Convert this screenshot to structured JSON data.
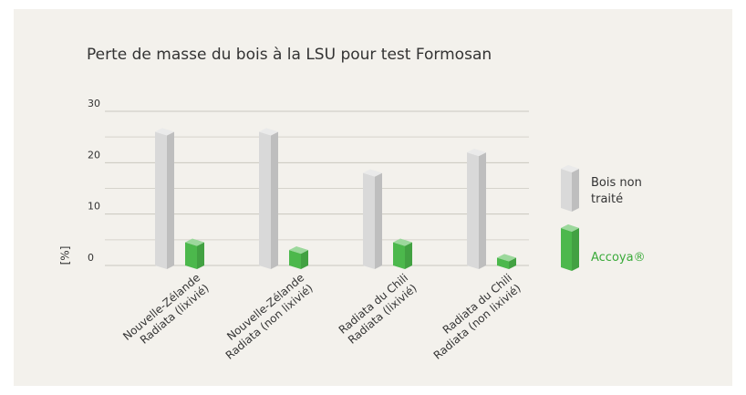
{
  "chart_data": {
    "type": "bar3d",
    "title": "Perte de masse du bois à la LSU pour test Formosan",
    "ylabel": "[%]",
    "categories": [
      [
        "Nouvelle-Zélande",
        "Radiata (lixivié)"
      ],
      [
        "Nouvelle-Zélande",
        "Radiata (non lixivié)"
      ],
      [
        "Radiata du Chili",
        "Radiata (lixivié)"
      ],
      [
        "Radiata du Chili",
        "Radiata (non lixivié)"
      ]
    ],
    "series": [
      {
        "name": "Bois non traité",
        "color": "#d9d9d9",
        "values": [
          26,
          26,
          18,
          22
        ]
      },
      {
        "name": "Accoya®",
        "color": "#4cb84c",
        "values": [
          4.5,
          3,
          4.5,
          1.5
        ]
      }
    ],
    "ylim": [
      0,
      30
    ],
    "yticks": [
      0,
      10,
      20,
      30
    ],
    "minor_yticks": [
      5,
      15,
      25
    ],
    "grid": true,
    "legend": "right"
  }
}
